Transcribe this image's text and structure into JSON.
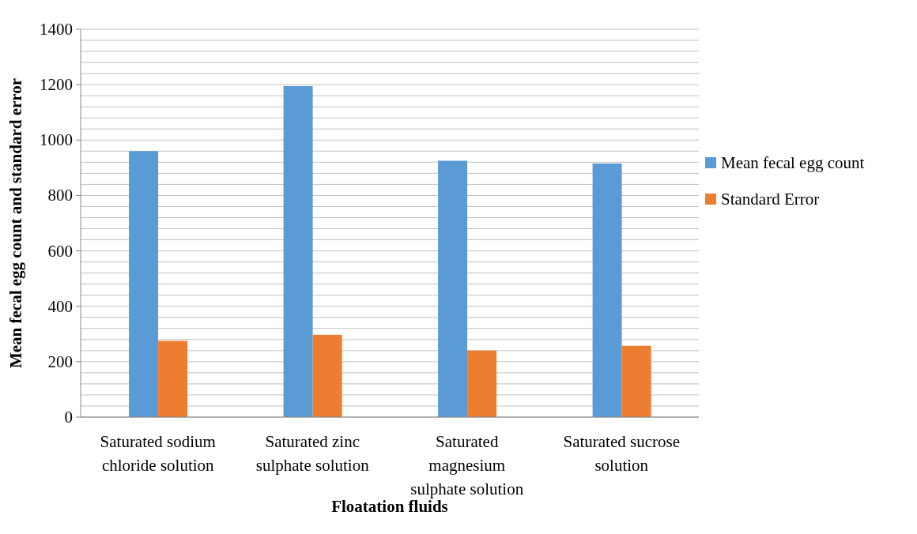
{
  "chart_data": {
    "type": "bar",
    "xlabel": "Floatation fluids",
    "ylabel": "Mean fecal egg count and standard error",
    "categories": [
      "Saturated sodium chloride solution",
      "Saturated zinc sulphate solution",
      "Saturated magnesium sulphate solution",
      "Saturated sucrose solution"
    ],
    "series": [
      {
        "name": "Mean fecal egg count",
        "color": "#5b9bd5",
        "values": [
          960,
          1195,
          925,
          915
        ]
      },
      {
        "name": "Standard Error",
        "color": "#ed7d31",
        "values": [
          275,
          297,
          240,
          257
        ]
      }
    ],
    "ylim": [
      0,
      1400
    ],
    "yticks": [
      0,
      {
        "value": 40,
        "label": null
      },
      {
        "value": 80,
        "label": null
      },
      {
        "value": 120,
        "label": null
      },
      {
        "value": 160,
        "label": null
      },
      200,
      {
        "value": 240,
        "label": null
      },
      {
        "value": 280,
        "label": null
      },
      {
        "value": 320,
        "label": null
      },
      {
        "value": 360,
        "label": null
      },
      400,
      {
        "value": 440,
        "label": null
      },
      {
        "value": 480,
        "label": null
      },
      {
        "value": 520,
        "label": null
      },
      {
        "value": 560,
        "label": null
      },
      600,
      {
        "value": 640,
        "label": null
      },
      {
        "value": 680,
        "label": null
      },
      {
        "value": 720,
        "label": null
      },
      {
        "value": 760,
        "label": null
      },
      800,
      {
        "value": 840,
        "label": null
      },
      {
        "value": 880,
        "label": null
      },
      {
        "value": 920,
        "label": null
      },
      {
        "value": 960,
        "label": null
      },
      1000,
      {
        "value": 1040,
        "label": null
      },
      {
        "value": 1080,
        "label": null
      },
      {
        "value": 1120,
        "label": null
      },
      {
        "value": 1160,
        "label": null
      },
      1200,
      {
        "value": 1240,
        "label": null
      },
      {
        "value": 1280,
        "label": null
      },
      {
        "value": 1320,
        "label": null
      },
      {
        "value": 1360,
        "label": null
      },
      1400
    ],
    "grid": "y",
    "legend": "right"
  }
}
